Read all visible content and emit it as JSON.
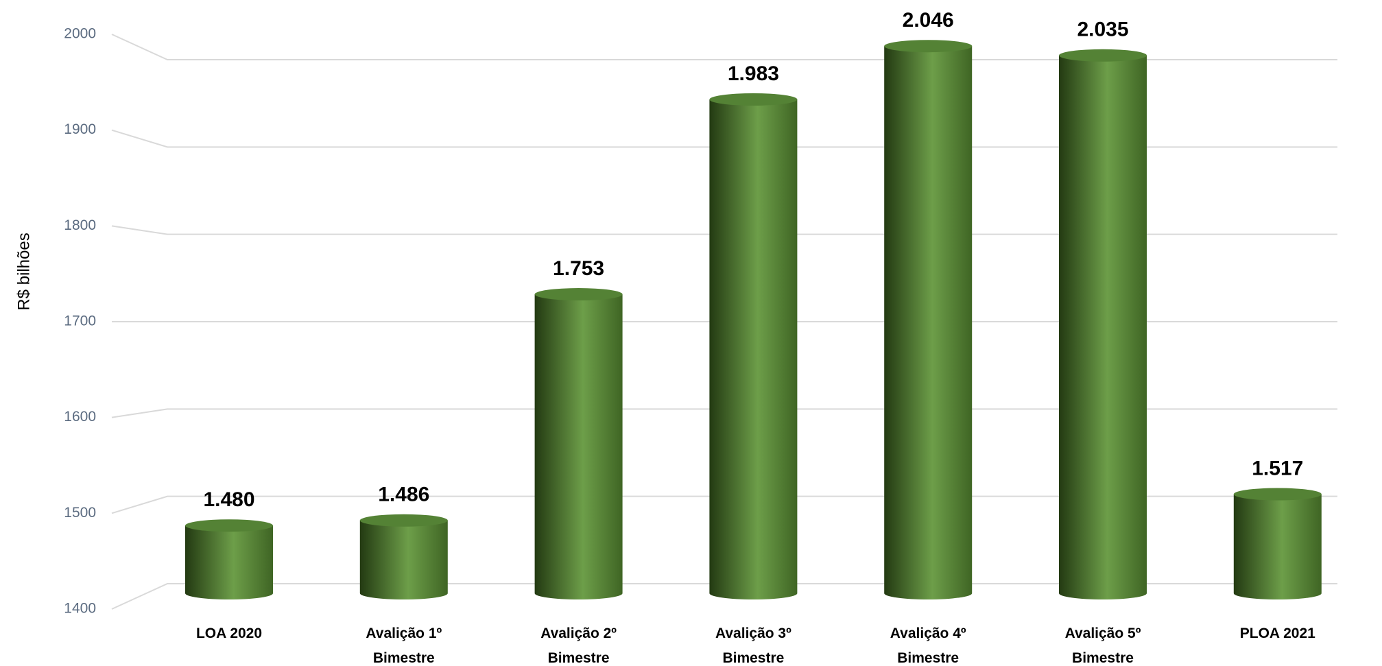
{
  "chart_data": {
    "type": "bar",
    "y_label": "R$ bilhões",
    "categories": [
      "LOA 2020",
      "Avalição 1º Bimestre",
      "Avalição 2º Bimestre",
      "Avalição 3º Bimestre",
      "Avalição 4º Bimestre",
      "Avalição 5º Bimestre",
      "PLOA 2021"
    ],
    "values": [
      1480,
      1486,
      1753,
      1983,
      2046,
      2035,
      1517
    ],
    "value_labels": [
      "1.480",
      "1.486",
      "1.753",
      "1.983",
      "2.046",
      "2.035",
      "1.517"
    ],
    "color": "#548235",
    "ylim": [
      1400,
      2000
    ],
    "yticks": [
      1400,
      1500,
      1600,
      1700,
      1800,
      1900,
      2000
    ],
    "grid": true
  }
}
